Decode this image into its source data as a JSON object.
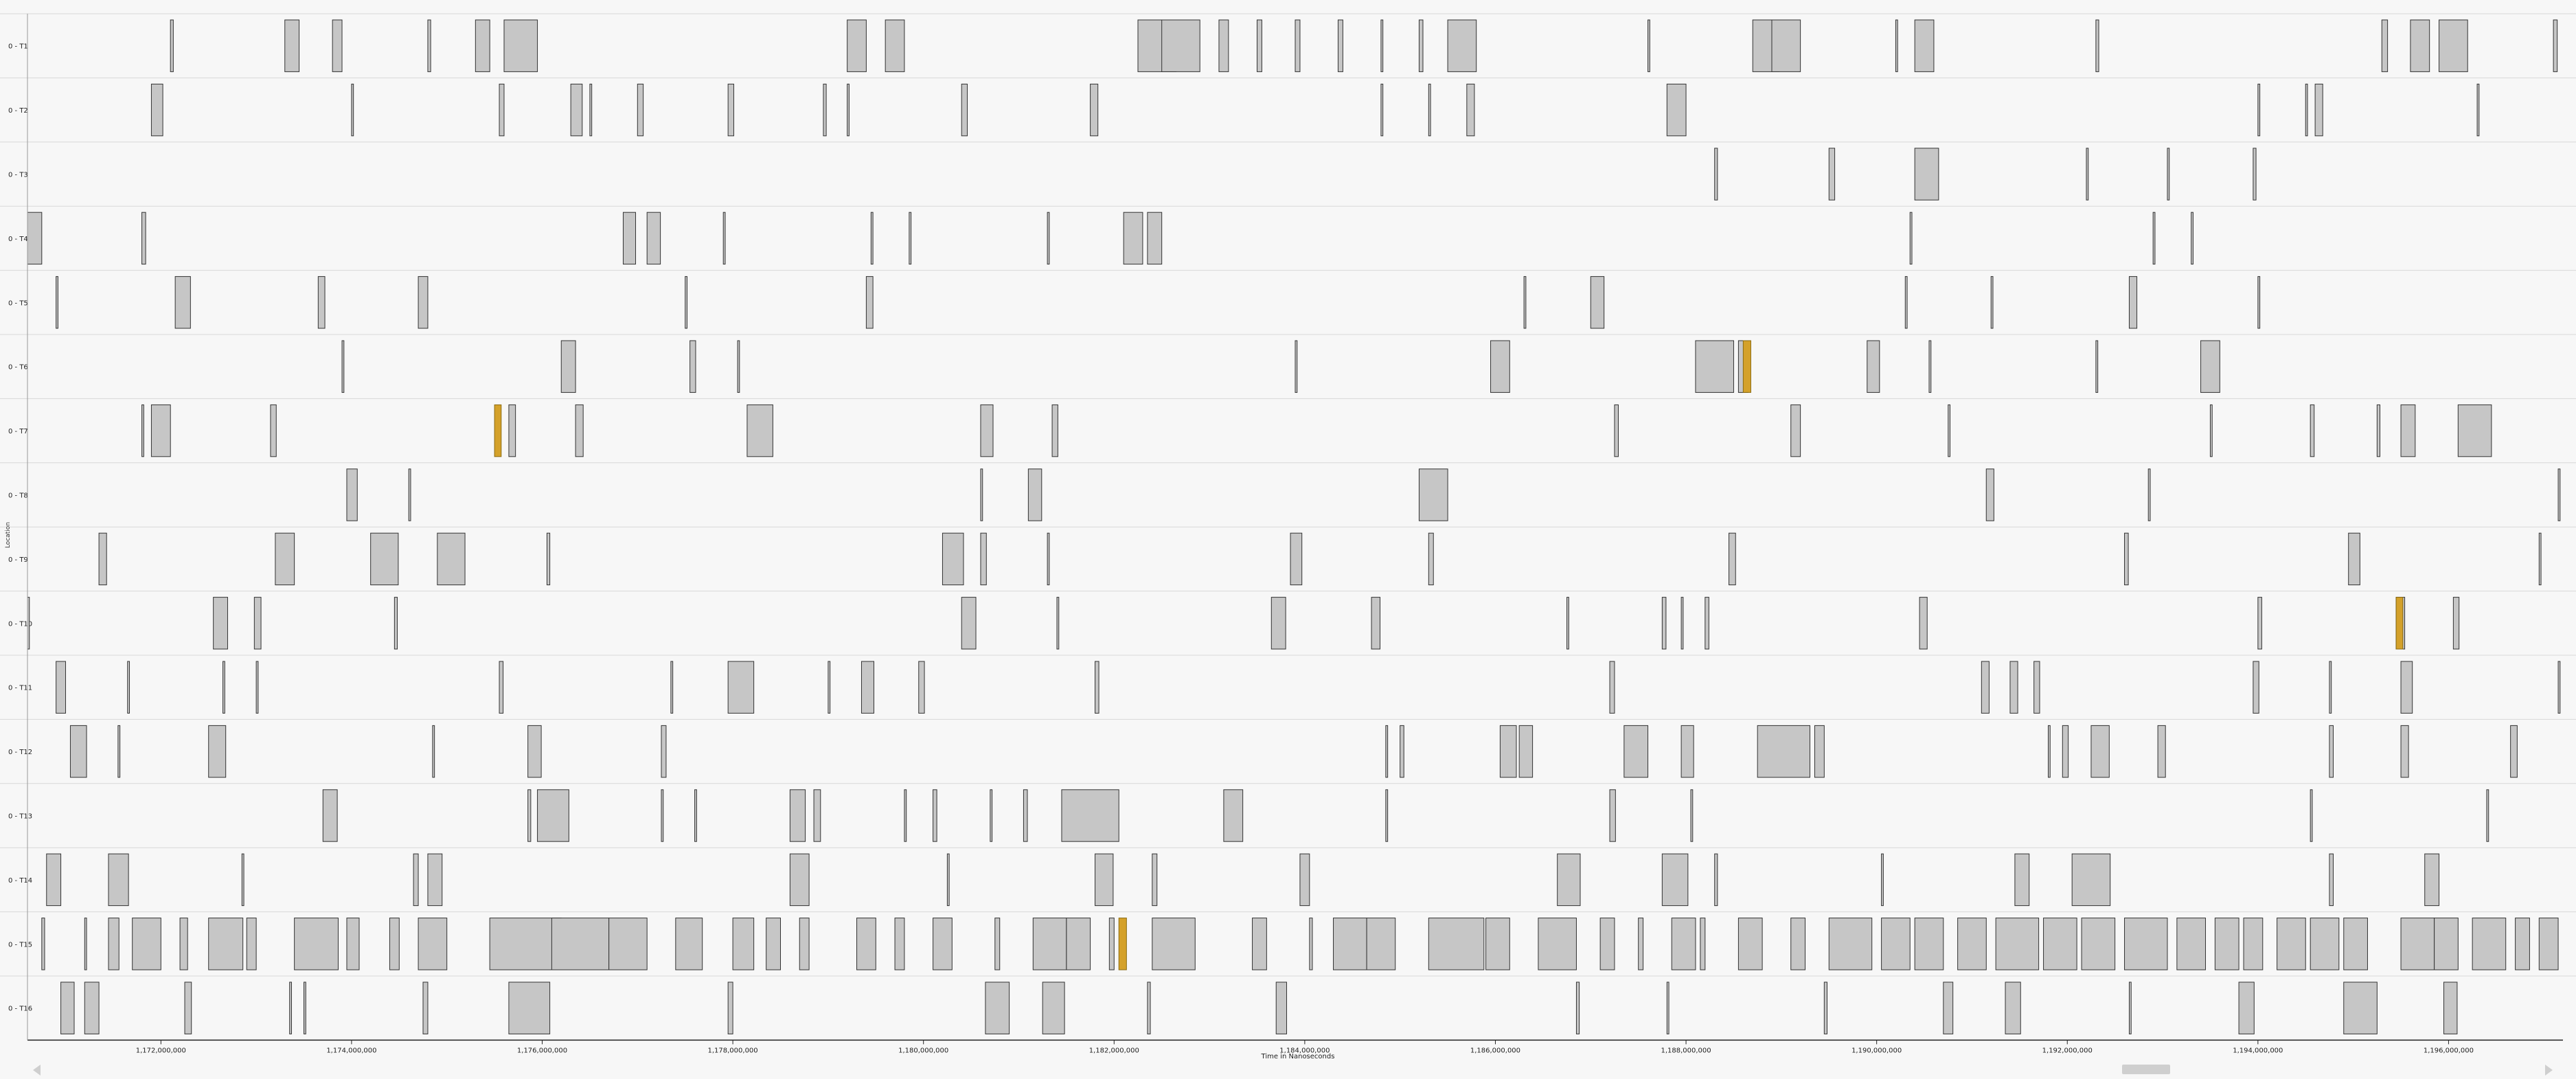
{
  "y_axis_label": "Location",
  "x_axis_label": "Time in Nanoseconds",
  "colors": {
    "background": "#f7f7f7",
    "lane_separator": "#d8d8d8",
    "block_fill": "#c6c6c6",
    "block_stroke": "#333333",
    "highlight_fill": "#d4a12a",
    "axis": "#222222",
    "scrollbar": "#cfcfcf"
  },
  "x_axis": {
    "range": [
      1170600000,
      1197200000
    ],
    "ticks": [
      {
        "value": 1172000000,
        "label": "1,172,000,000"
      },
      {
        "value": 1174000000,
        "label": "1,174,000,000"
      },
      {
        "value": 1176000000,
        "label": "1,176,000,000"
      },
      {
        "value": 1178000000,
        "label": "1,178,000,000"
      },
      {
        "value": 1180000000,
        "label": "1,180,000,000"
      },
      {
        "value": 1182000000,
        "label": "1,182,000,000"
      },
      {
        "value": 1184000000,
        "label": "1,184,000,000"
      },
      {
        "value": 1186000000,
        "label": "1,186,000,000"
      },
      {
        "value": 1188000000,
        "label": "1,188,000,000"
      },
      {
        "value": 1190000000,
        "label": "1,190,000,000"
      },
      {
        "value": 1192000000,
        "label": "1,192,000,000"
      },
      {
        "value": 1194000000,
        "label": "1,194,000,000"
      },
      {
        "value": 1196000000,
        "label": "1,196,000,000"
      }
    ]
  },
  "lanes": [
    {
      "label": "0 - T1"
    },
    {
      "label": "0 - T2"
    },
    {
      "label": "0 - T3"
    },
    {
      "label": "0 - T4"
    },
    {
      "label": "0 - T5"
    },
    {
      "label": "0 - T6"
    },
    {
      "label": "0 - T7"
    },
    {
      "label": "0 - T8"
    },
    {
      "label": "0 - T9"
    },
    {
      "label": "0 - T10"
    },
    {
      "label": "0 - T11"
    },
    {
      "label": "0 - T12"
    },
    {
      "label": "0 - T13"
    },
    {
      "label": "0 - T14"
    },
    {
      "label": "0 - T15"
    },
    {
      "label": "0 - T16"
    }
  ],
  "chart_data": {
    "type": "timeline",
    "xlabel": "Time in Nanoseconds",
    "ylabel": "Location",
    "xlim": [
      1170600000,
      1197200000
    ],
    "highlighted_lanes": [
      "0 - T6",
      "0 - T7",
      "0 - T10",
      "0 - T15"
    ],
    "lane_events": [
      {
        "lane": "0 - T1",
        "x": [
          1172100000,
          1173300000,
          1173800000,
          1174800000,
          1175300000,
          1175600000,
          1179200000,
          1179600000,
          1182250000,
          1182500000,
          1183100000,
          1183500000,
          1183900000,
          1184350000,
          1184800000,
          1185200000,
          1185500000,
          1187600000,
          1188700000,
          1188900000,
          1190200000,
          1190400000,
          1192300000,
          1195300000,
          1195600000,
          1195900000,
          1197100000
        ],
        "end": [
          1172130000,
          1173450000,
          1173900000,
          1174830000,
          1175450000,
          1175950000,
          1179400000,
          1179800000,
          1182650000,
          1182900000,
          1183200000,
          1183550000,
          1183950000,
          1184400000,
          1184820000,
          1185240000,
          1185800000,
          1187620000,
          1188980000,
          1189200000,
          1190220000,
          1190600000,
          1192330000,
          1195360000,
          1195800000,
          1196200000,
          1197140000
        ]
      },
      {
        "lane": "0 - T2",
        "x": [
          1171900000,
          1174000000,
          1175550000,
          1176300000,
          1176500000,
          1177000000,
          1177950000,
          1178950000,
          1179200000,
          1180400000,
          1181750000,
          1184800000,
          1185300000,
          1185700000,
          1187800000,
          1194000000,
          1194500000,
          1194600000,
          1196300000
        ],
        "end": [
          1172020000,
          1174020000,
          1175600000,
          1176420000,
          1176520000,
          1177060000,
          1178010000,
          1178980000,
          1179220000,
          1180460000,
          1181830000,
          1184820000,
          1185320000,
          1185780000,
          1188000000,
          1194020000,
          1194520000,
          1194680000,
          1196320000
        ]
      },
      {
        "lane": "0 - T3",
        "x": [
          1188300000,
          1189500000,
          1190400000,
          1192200000,
          1193050000,
          1193950000
        ],
        "end": [
          1188330000,
          1189560000,
          1190650000,
          1192220000,
          1193070000,
          1193980000
        ]
      },
      {
        "lane": "0 - T4",
        "x": [
          1170600000,
          1171800000,
          1176850000,
          1177100000,
          1177900000,
          1179450000,
          1179850000,
          1181300000,
          1182100000,
          1182350000,
          1190350000,
          1192900000,
          1193300000
        ],
        "end": [
          1170750000,
          1171840000,
          1176980000,
          1177240000,
          1177920000,
          1179470000,
          1179870000,
          1181320000,
          1182300000,
          1182500000,
          1190370000,
          1192920000,
          1193320000
        ]
      },
      {
        "lane": "0 - T5",
        "x": [
          1170900000,
          1172150000,
          1173650000,
          1174700000,
          1177500000,
          1179400000,
          1186300000,
          1187000000,
          1190300000,
          1191200000,
          1192650000,
          1194000000
        ],
        "end": [
          1170920000,
          1172310000,
          1173720000,
          1174800000,
          1177520000,
          1179470000,
          1186320000,
          1187140000,
          1190320000,
          1191220000,
          1192730000,
          1194020000
        ]
      },
      {
        "lane": "0 - T6",
        "x": [
          1173900000,
          1176200000,
          1177550000,
          1178050000,
          1183900000,
          1185950000,
          1188100000,
          1188550000,
          1189900000,
          1190550000,
          1192300000,
          1193400000
        ],
        "end": [
          1173920000,
          1176350000,
          1177610000,
          1178070000,
          1183920000,
          1186150000,
          1188500000,
          1188650000,
          1190030000,
          1190570000,
          1192320000,
          1193600000
        ]
      },
      {
        "lane": "0 - T7",
        "x": [
          1171800000,
          1171900000,
          1173150000,
          1175650000,
          1176350000,
          1178150000,
          1180600000,
          1181350000,
          1187250000,
          1189100000,
          1190750000,
          1193500000,
          1194550000,
          1195250000,
          1195500000,
          1196100000
        ],
        "end": [
          1171820000,
          1172100000,
          1173210000,
          1175720000,
          1176430000,
          1178420000,
          1180730000,
          1181410000,
          1187290000,
          1189200000,
          1190770000,
          1193520000,
          1194590000,
          1195280000,
          1195650000,
          1196450000
        ]
      },
      {
        "lane": "0 - T8",
        "x": [
          1173950000,
          1174600000,
          1180600000,
          1181100000,
          1185200000,
          1191150000,
          1192850000,
          1197150000
        ],
        "end": [
          1174060000,
          1174620000,
          1180620000,
          1181240000,
          1185500000,
          1191230000,
          1192870000,
          1197170000
        ]
      },
      {
        "lane": "0 - T9",
        "x": [
          1171350000,
          1173200000,
          1174200000,
          1174900000,
          1176050000,
          1180200000,
          1180600000,
          1181300000,
          1183850000,
          1185300000,
          1188450000,
          1192600000,
          1194950000,
          1196950000
        ],
        "end": [
          1171430000,
          1173400000,
          1174490000,
          1175190000,
          1176080000,
          1180420000,
          1180660000,
          1181320000,
          1183970000,
          1185350000,
          1188520000,
          1192640000,
          1195070000,
          1196970000
        ]
      },
      {
        "lane": "0 - T10",
        "x": [
          1170600000,
          1172550000,
          1172980000,
          1174450000,
          1180400000,
          1181400000,
          1183650000,
          1184700000,
          1186750000,
          1187750000,
          1187950000,
          1188200000,
          1190450000,
          1194000000,
          1195450000,
          1196050000
        ],
        "end": [
          1170620000,
          1172700000,
          1173050000,
          1174480000,
          1180550000,
          1181420000,
          1183800000,
          1184790000,
          1186770000,
          1187790000,
          1187970000,
          1188240000,
          1190530000,
          1194040000,
          1195540000,
          1196110000
        ]
      },
      {
        "lane": "0 - T11",
        "x": [
          1170900000,
          1171650000,
          1172650000,
          1173000000,
          1175550000,
          1177350000,
          1177950000,
          1179000000,
          1179350000,
          1179950000,
          1181800000,
          1187200000,
          1191100000,
          1191400000,
          1191650000,
          1193950000,
          1194750000,
          1195500000,
          1197150000
        ],
        "end": [
          1171000000,
          1171670000,
          1172670000,
          1173020000,
          1175590000,
          1177370000,
          1178220000,
          1179020000,
          1179480000,
          1180010000,
          1181840000,
          1187250000,
          1191180000,
          1191480000,
          1191710000,
          1194010000,
          1194770000,
          1195620000,
          1197170000
        ]
      },
      {
        "lane": "0 - T12",
        "x": [
          1171050000,
          1171550000,
          1172500000,
          1174850000,
          1175850000,
          1177250000,
          1184850000,
          1185000000,
          1186050000,
          1186250000,
          1187350000,
          1187950000,
          1188750000,
          1189350000,
          1191800000,
          1191950000,
          1192250000,
          1192950000,
          1194750000,
          1195500000,
          1196650000
        ],
        "end": [
          1171220000,
          1171570000,
          1172680000,
          1174870000,
          1175990000,
          1177300000,
          1184870000,
          1185040000,
          1186220000,
          1186390000,
          1187600000,
          1188080000,
          1189300000,
          1189450000,
          1191820000,
          1192010000,
          1192440000,
          1193030000,
          1194790000,
          1195580000,
          1196720000
        ]
      },
      {
        "lane": "0 - T13",
        "x": [
          1173700000,
          1175850000,
          1175950000,
          1177250000,
          1177600000,
          1178600000,
          1178850000,
          1179800000,
          1180100000,
          1180700000,
          1181050000,
          1181450000,
          1183150000,
          1184850000,
          1187200000,
          1188050000,
          1194550000,
          1196400000
        ],
        "end": [
          1173850000,
          1175880000,
          1176280000,
          1177270000,
          1177620000,
          1178760000,
          1178920000,
          1179820000,
          1180140000,
          1180720000,
          1181090000,
          1182050000,
          1183350000,
          1184870000,
          1187260000,
          1188070000,
          1194570000,
          1196420000
        ]
      },
      {
        "lane": "0 - T14",
        "x": [
          1170800000,
          1171450000,
          1172850000,
          1174650000,
          1174800000,
          1178600000,
          1180250000,
          1181800000,
          1182400000,
          1183950000,
          1186650000,
          1187750000,
          1188300000,
          1190050000,
          1191450000,
          1192050000,
          1194750000,
          1195750000
        ],
        "end": [
          1170950000,
          1171660000,
          1172870000,
          1174700000,
          1174950000,
          1178800000,
          1180270000,
          1181990000,
          1182450000,
          1184050000,
          1186890000,
          1188020000,
          1188330000,
          1190070000,
          1191600000,
          1192450000,
          1194790000,
          1195900000
        ]
      },
      {
        "lane": "0 - T15",
        "x": [
          1170750000,
          1171200000,
          1171450000,
          1171700000,
          1172200000,
          1172500000,
          1172900000,
          1173400000,
          1173950000,
          1174400000,
          1174700000,
          1175450000,
          1176100000,
          1176700000,
          1177400000,
          1178000000,
          1178350000,
          1178700000,
          1179300000,
          1179700000,
          1180100000,
          1180750000,
          1181150000,
          1181500000,
          1181950000,
          1182400000,
          1183450000,
          1184050000,
          1184300000,
          1184650000,
          1185300000,
          1185900000,
          1186450000,
          1187100000,
          1187500000,
          1187850000,
          1188150000,
          1188550000,
          1189100000,
          1189500000,
          1190050000,
          1190400000,
          1190850000,
          1191250000,
          1191750000,
          1192150000,
          1192600000,
          1193150000,
          1193550000,
          1193850000,
          1194200000,
          1194550000,
          1194900000,
          1195500000,
          1195850000,
          1196250000,
          1196700000,
          1196950000
        ],
        "end": [
          1170780000,
          1171220000,
          1171560000,
          1172000000,
          1172280000,
          1172860000,
          1173000000,
          1173860000,
          1174080000,
          1174500000,
          1175000000,
          1176200000,
          1176700000,
          1177100000,
          1177680000,
          1178220000,
          1178500000,
          1178800000,
          1179500000,
          1179800000,
          1180300000,
          1180800000,
          1181500000,
          1181750000,
          1182000000,
          1182850000,
          1183600000,
          1184080000,
          1184650000,
          1184950000,
          1185880000,
          1186150000,
          1186850000,
          1187250000,
          1187550000,
          1188100000,
          1188200000,
          1188800000,
          1189250000,
          1189950000,
          1190350000,
          1190700000,
          1191150000,
          1191700000,
          1192100000,
          1192500000,
          1193050000,
          1193450000,
          1193800000,
          1194050000,
          1194500000,
          1194850000,
          1195150000,
          1195850000,
          1196100000,
          1196600000,
          1196850000,
          1197150000
        ]
      },
      {
        "lane": "0 - T16",
        "x": [
          1170950000,
          1171200000,
          1172250000,
          1173350000,
          1173500000,
          1174750000,
          1175650000,
          1177950000,
          1180650000,
          1181250000,
          1182350000,
          1183700000,
          1186850000,
          1187800000,
          1189450000,
          1190700000,
          1191350000,
          1192650000,
          1193800000,
          1194900000,
          1195950000
        ],
        "end": [
          1171090000,
          1171350000,
          1172320000,
          1173370000,
          1173520000,
          1174800000,
          1176080000,
          1178000000,
          1180900000,
          1181480000,
          1182380000,
          1183810000,
          1186880000,
          1187820000,
          1189480000,
          1190800000,
          1191510000,
          1192670000,
          1193960000,
          1195250000,
          1196090000
        ]
      }
    ],
    "highlights": [
      {
        "lane": "0 - T6",
        "x": 1188600000,
        "end": 1188680000
      },
      {
        "lane": "0 - T7",
        "x": 1175500000,
        "end": 1175570000
      },
      {
        "lane": "0 - T10",
        "x": 1195450000,
        "end": 1195520000
      },
      {
        "lane": "0 - T15",
        "x": 1182050000,
        "end": 1182130000
      }
    ]
  }
}
